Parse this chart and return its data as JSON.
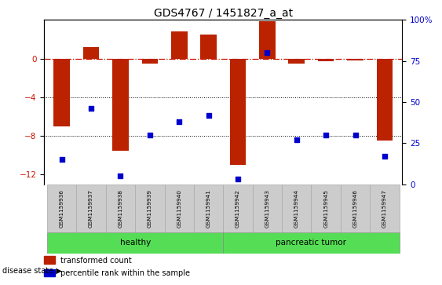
{
  "title": "GDS4767 / 1451827_a_at",
  "samples": [
    "GSM1159936",
    "GSM1159937",
    "GSM1159938",
    "GSM1159939",
    "GSM1159940",
    "GSM1159941",
    "GSM1159942",
    "GSM1159943",
    "GSM1159944",
    "GSM1159945",
    "GSM1159946",
    "GSM1159947"
  ],
  "transformed_count": [
    -7.0,
    1.2,
    -9.5,
    -0.5,
    2.8,
    2.5,
    -11.0,
    3.9,
    -0.5,
    -0.3,
    -0.2,
    -8.5
  ],
  "percentile_rank": [
    15,
    46,
    5,
    30,
    38,
    42,
    3,
    80,
    27,
    30,
    30,
    17
  ],
  "left_ylim": [
    -13,
    4
  ],
  "left_yticks": [
    0,
    -4,
    -8,
    -12
  ],
  "right_ylim": [
    0,
    100
  ],
  "right_yticks": [
    0,
    25,
    50,
    75,
    100
  ],
  "bar_color": "#bb2200",
  "dot_color": "#0000cc",
  "ref_line_color": "#cc1100",
  "grid_color": "#000000",
  "healthy_color": "#99ee88",
  "tumor_color": "#55dd55",
  "label_box_color": "#cccccc",
  "label_box_edge": "#aaaaaa",
  "healthy_label": "healthy",
  "tumor_label": "pancreatic tumor",
  "healthy_indices": [
    0,
    1,
    2,
    3,
    4,
    5
  ],
  "tumor_indices": [
    6,
    7,
    8,
    9,
    10,
    11
  ],
  "disease_state_label": "disease state",
  "legend_bar_label": "transformed count",
  "legend_dot_label": "percentile rank within the sample",
  "bar_width": 0.55,
  "title_fontsize": 10
}
